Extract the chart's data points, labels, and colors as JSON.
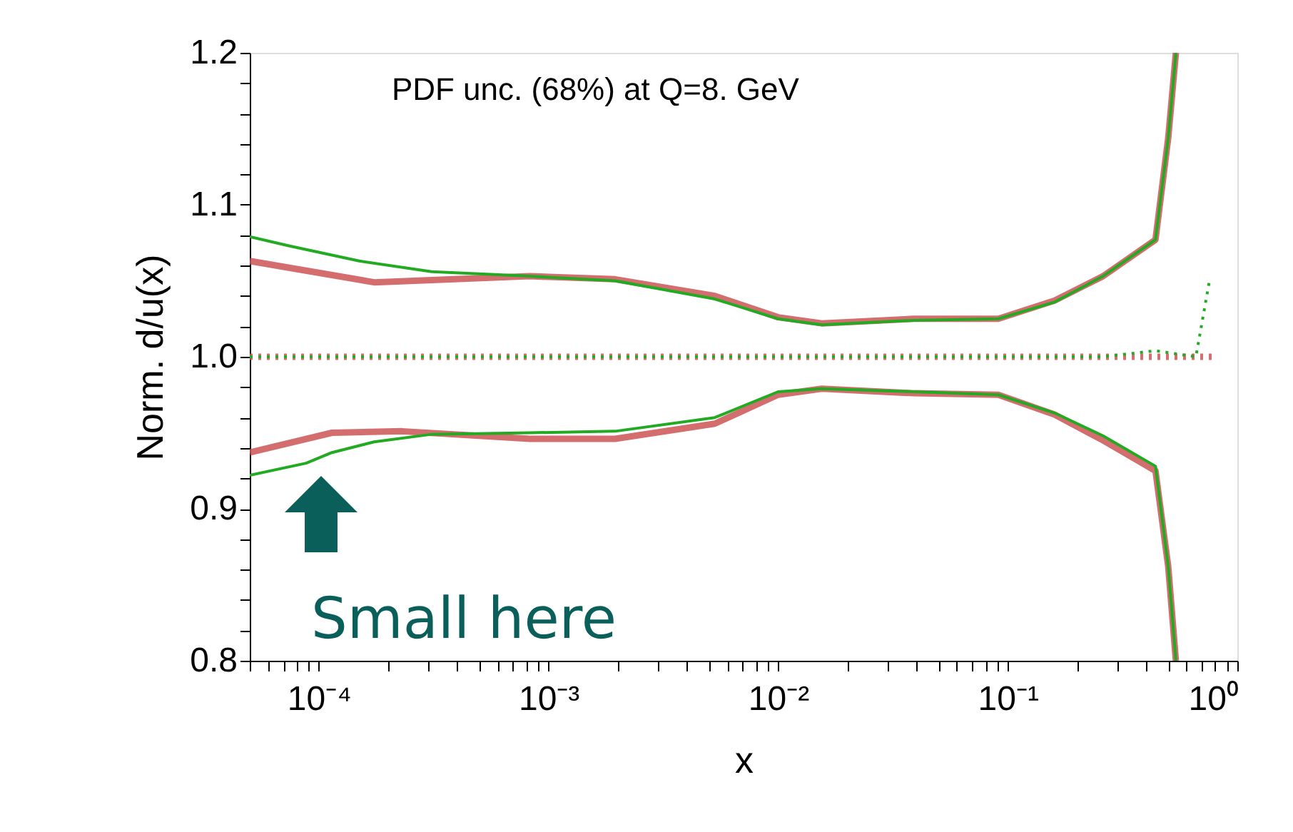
{
  "chart_data": {
    "type": "line",
    "xlabel": "x",
    "ylabel": "Norm. d/u(x)",
    "log": "x",
    "grid": false,
    "marker": "none",
    "xlim": [
      5e-05,
      1
    ],
    "ylim": [
      0.8,
      1.2
    ],
    "xticks": [
      {
        "value": 5e-05,
        "label": null
      },
      {
        "value": 6e-05,
        "label": null
      },
      {
        "value": 7e-05,
        "label": null
      },
      {
        "value": 8e-05,
        "label": null
      },
      {
        "value": 9e-05,
        "label": null
      },
      {
        "value": 0.0001,
        "label": "10⁻⁴"
      },
      {
        "value": 0.0002,
        "label": null
      },
      {
        "value": 0.0003,
        "label": null
      },
      {
        "value": 0.0004,
        "label": null
      },
      {
        "value": 0.0005,
        "label": null
      },
      {
        "value": 0.0006,
        "label": null
      },
      {
        "value": 0.0007,
        "label": null
      },
      {
        "value": 0.0008,
        "label": null
      },
      {
        "value": 0.0009,
        "label": null
      },
      {
        "value": 0.001,
        "label": "10⁻³"
      },
      {
        "value": 0.002,
        "label": null
      },
      {
        "value": 0.003,
        "label": null
      },
      {
        "value": 0.004,
        "label": null
      },
      {
        "value": 0.005,
        "label": null
      },
      {
        "value": 0.006,
        "label": null
      },
      {
        "value": 0.007,
        "label": null
      },
      {
        "value": 0.008,
        "label": null
      },
      {
        "value": 0.009,
        "label": null
      },
      {
        "value": 0.01,
        "label": "10⁻²"
      },
      {
        "value": 0.02,
        "label": null
      },
      {
        "value": 0.03,
        "label": null
      },
      {
        "value": 0.04,
        "label": null
      },
      {
        "value": 0.05,
        "label": null
      },
      {
        "value": 0.06,
        "label": null
      },
      {
        "value": 0.07,
        "label": null
      },
      {
        "value": 0.08,
        "label": null
      },
      {
        "value": 0.09,
        "label": null
      },
      {
        "value": 0.1,
        "label": "10⁻¹"
      },
      {
        "value": 0.2,
        "label": null
      },
      {
        "value": 0.3,
        "label": null
      },
      {
        "value": 0.4,
        "label": null
      },
      {
        "value": 0.5,
        "label": null
      },
      {
        "value": 0.6,
        "label": null
      },
      {
        "value": 0.7,
        "label": null
      },
      {
        "value": 0.8,
        "label": null
      },
      {
        "value": 0.9,
        "label": null
      },
      {
        "value": 1,
        "label": "10⁰"
      }
    ],
    "yticks": [
      {
        "value": 0.8,
        "label": "0.8"
      },
      {
        "value": 0.82,
        "label": null
      },
      {
        "value": 0.84,
        "label": null
      },
      {
        "value": 0.86,
        "label": null
      },
      {
        "value": 0.88,
        "label": null
      },
      {
        "value": 0.9,
        "label": "0.9"
      },
      {
        "value": 0.92,
        "label": null
      },
      {
        "value": 0.94,
        "label": null
      },
      {
        "value": 0.96,
        "label": null
      },
      {
        "value": 0.98,
        "label": null
      },
      {
        "value": 1.0,
        "label": "1.0"
      },
      {
        "value": 1.02,
        "label": null
      },
      {
        "value": 1.04,
        "label": null
      },
      {
        "value": 1.06,
        "label": null
      },
      {
        "value": 1.08,
        "label": null
      },
      {
        "value": 1.1,
        "label": "1.1"
      },
      {
        "value": 1.12,
        "label": null
      },
      {
        "value": 1.14,
        "label": null
      },
      {
        "value": 1.16,
        "label": null
      },
      {
        "value": 1.18,
        "label": null
      },
      {
        "value": 1.2,
        "label": "1.2"
      }
    ],
    "series": [
      {
        "color": "#cc5555",
        "line_style": "solid",
        "x": [
          5e-05,
          0.000174,
          0.00083,
          0.00195,
          0.0053,
          0.01,
          0.0155,
          0.039,
          0.091,
          0.16,
          0.26,
          0.44,
          0.5,
          0.54
        ],
        "values": [
          1.063,
          1.049,
          1.053,
          1.051,
          1.04,
          1.026,
          1.022,
          1.025,
          1.025,
          1.037,
          1.053,
          1.077,
          1.144,
          1.2
        ]
      },
      {
        "color": "#cc5555",
        "line_style": "solid",
        "x": [
          5e-05,
          0.000114,
          0.00023,
          0.00083,
          0.00195,
          0.0053,
          0.01,
          0.0155,
          0.039,
          0.091,
          0.16,
          0.26,
          0.44,
          0.5,
          0.54
        ],
        "values": [
          0.937,
          0.95,
          0.951,
          0.946,
          0.946,
          0.956,
          0.975,
          0.979,
          0.976,
          0.975,
          0.962,
          0.945,
          0.925,
          0.862,
          0.8
        ]
      },
      {
        "color": "#cc5555",
        "line_style": "dotted",
        "x": [
          5e-05,
          0.8
        ],
        "values": [
          1.0,
          1.0
        ]
      },
      {
        "color": "#22aa22",
        "line_style": "solid",
        "x": [
          5e-05,
          7.4e-05,
          0.00015,
          0.00031,
          0.00083,
          0.00195,
          0.0053,
          0.01,
          0.0155,
          0.039,
          0.091,
          0.16,
          0.26,
          0.44,
          0.5,
          0.54
        ],
        "values": [
          1.079,
          1.073,
          1.063,
          1.056,
          1.053,
          1.05,
          1.038,
          1.025,
          1.021,
          1.024,
          1.025,
          1.036,
          1.053,
          1.077,
          1.144,
          1.2
        ]
      },
      {
        "color": "#22aa22",
        "line_style": "solid",
        "x": [
          5e-05,
          8.8e-05,
          0.000114,
          0.000174,
          0.00031,
          0.00083,
          0.00195,
          0.0053,
          0.01,
          0.0155,
          0.039,
          0.091,
          0.16,
          0.26,
          0.44,
          0.5,
          0.54
        ],
        "values": [
          0.922,
          0.93,
          0.937,
          0.944,
          0.949,
          0.95,
          0.951,
          0.96,
          0.977,
          0.979,
          0.977,
          0.975,
          0.963,
          0.948,
          0.928,
          0.862,
          0.8
        ]
      },
      {
        "color": "#22aa22",
        "line_style": "dotted",
        "x": [
          5e-05,
          0.26,
          0.44,
          0.66,
          0.76
        ],
        "values": [
          1.0,
          1.0,
          1.004,
          1.0,
          1.052
        ]
      }
    ],
    "annotations": [
      "PDF unc. (68%) at Q=8. GeV",
      "Small here"
    ]
  }
}
